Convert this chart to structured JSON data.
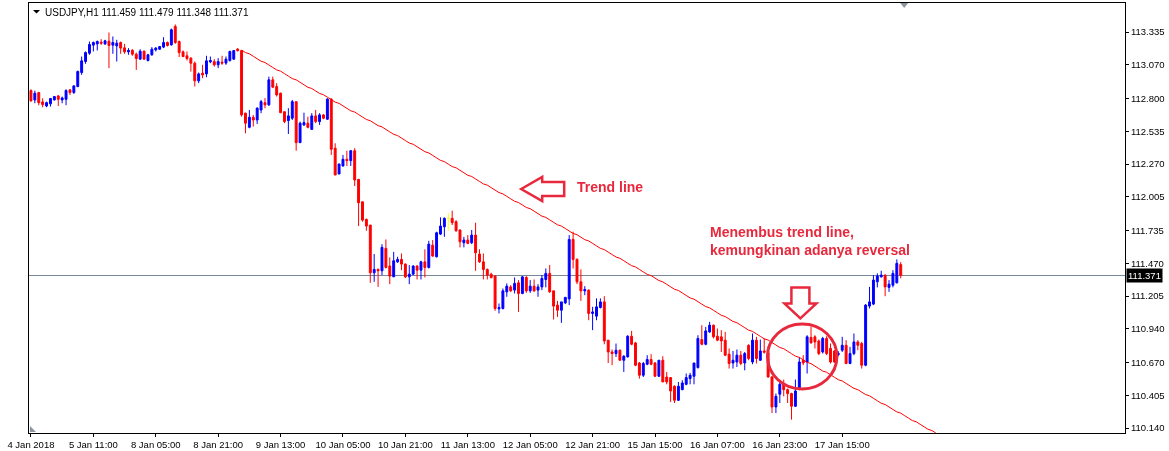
{
  "chart_data": {
    "type": "candlestick",
    "title": "USDJPY,H1 111.459 111.479 111.348 111.371",
    "categories": [
      "4 Jan 2018",
      null,
      null,
      null,
      null,
      null,
      null,
      null,
      null,
      null,
      null,
      null,
      null,
      null,
      null,
      null,
      "5 Jan 11:00",
      null,
      null,
      null,
      null,
      null,
      null,
      null,
      null,
      null,
      null,
      null,
      null,
      null,
      null,
      null,
      "8 Jan 05:00",
      null,
      null,
      null,
      null,
      null,
      null,
      null,
      null,
      null,
      null,
      null,
      null,
      null,
      null,
      null,
      "8 Jan 21:00",
      null,
      null,
      null,
      null,
      null,
      null,
      null,
      null,
      null,
      null,
      null,
      null,
      null,
      null,
      null,
      "9 Jan 13:00",
      null,
      null,
      null,
      null,
      null,
      null,
      null,
      null,
      null,
      null,
      null,
      null,
      null,
      null,
      null,
      "10 Jan 05:00",
      null,
      null,
      null,
      null,
      null,
      null,
      null,
      null,
      null,
      null,
      null,
      null,
      null,
      null,
      null,
      "10 Jan 21:00",
      null,
      null,
      null,
      null,
      null,
      null,
      null,
      null,
      null,
      null,
      null,
      null,
      null,
      null,
      null,
      "11 Jan 13:00",
      null,
      null,
      null,
      null,
      null,
      null,
      null,
      null,
      null,
      null,
      null,
      null,
      null,
      null,
      null,
      "12 Jan 05:00",
      null,
      null,
      null,
      null,
      null,
      null,
      null,
      null,
      null,
      null,
      null,
      null,
      null,
      null,
      null,
      "12 Jan 21:00",
      null,
      null,
      null,
      null,
      null,
      null,
      null,
      null,
      null,
      null,
      null,
      null,
      null,
      null,
      null,
      "15 Jan 15:00",
      null,
      null,
      null,
      null,
      null,
      null,
      null,
      null,
      null,
      null,
      null,
      null,
      null,
      null,
      null,
      "16 Jan 07:00",
      null,
      null,
      null,
      null,
      null,
      null,
      null,
      null,
      null,
      null,
      null,
      null,
      null,
      null,
      null,
      "16 Jan 23:00",
      null,
      null,
      null,
      null,
      null,
      null,
      null,
      null,
      null,
      null,
      null,
      null,
      null,
      null,
      null,
      "17 Jan 15:00",
      null,
      null,
      null,
      null,
      null,
      null,
      null,
      null,
      null,
      null,
      null,
      null,
      null,
      null,
      null,
      null,
      null,
      null,
      null,
      null,
      null,
      null,
      null,
      null,
      null,
      null,
      null,
      null,
      null,
      null,
      null,
      null,
      null,
      null,
      null,
      null,
      null,
      null,
      null,
      null,
      null,
      null,
      null,
      null,
      null,
      null,
      null,
      null,
      null,
      null,
      null,
      null,
      null,
      null,
      null,
      null,
      null,
      null,
      null,
      null,
      null,
      null,
      null,
      null,
      null,
      null,
      null,
      null,
      null,
      null,
      null,
      null
    ],
    "ohlc": [
      [
        112.863,
        112.874,
        112.774,
        112.78
      ],
      [
        112.788,
        112.863,
        112.761,
        112.842
      ],
      [
        112.847,
        112.853,
        112.745,
        112.766
      ],
      [
        112.772,
        112.801,
        112.729,
        112.75
      ],
      [
        112.739,
        112.774,
        112.729,
        112.766
      ],
      [
        112.756,
        112.804,
        112.734,
        112.799
      ],
      [
        112.788,
        112.82,
        112.783,
        112.815
      ],
      [
        112.82,
        112.828,
        112.739,
        112.793
      ],
      [
        112.788,
        112.815,
        112.761,
        112.804
      ],
      [
        112.793,
        112.874,
        112.745,
        112.863
      ],
      [
        112.869,
        112.874,
        112.828,
        112.847
      ],
      [
        112.847,
        112.907,
        112.837,
        112.901
      ],
      [
        112.896,
        113.025,
        112.89,
        113.017
      ],
      [
        113.009,
        113.138,
        112.99,
        113.103
      ],
      [
        113.098,
        113.179,
        113.079,
        113.17
      ],
      [
        113.165,
        113.259,
        113.152,
        113.235
      ],
      [
        113.23,
        113.259,
        113.179,
        113.251
      ],
      [
        113.24,
        113.267,
        113.187,
        113.259
      ],
      [
        113.254,
        113.278,
        113.232,
        113.246
      ],
      [
        113.24,
        113.273,
        113.232,
        113.265
      ],
      [
        113.262,
        113.332,
        113.044,
        113.227
      ],
      [
        113.23,
        113.3,
        113.16,
        113.251
      ],
      [
        113.224,
        113.273,
        113.098,
        113.246
      ],
      [
        113.251,
        113.259,
        113.16,
        113.206
      ],
      [
        113.208,
        113.24,
        113.16,
        113.176
      ],
      [
        113.176,
        113.206,
        113.152,
        113.187
      ],
      [
        113.189,
        113.197,
        113.144,
        113.157
      ],
      [
        113.157,
        113.17,
        113.03,
        113.122
      ],
      [
        113.117,
        113.197,
        113.111,
        113.181
      ],
      [
        113.181,
        113.187,
        113.111,
        113.117
      ],
      [
        113.106,
        113.16,
        113.098,
        113.152
      ],
      [
        113.152,
        113.214,
        113.144,
        113.197
      ],
      [
        113.192,
        113.214,
        113.179,
        113.206
      ],
      [
        113.197,
        113.219,
        113.192,
        113.219
      ],
      [
        113.214,
        113.294,
        113.206,
        113.251
      ],
      [
        113.251,
        113.259,
        113.219,
        113.227
      ],
      [
        113.232,
        113.364,
        113.227,
        113.354
      ],
      [
        113.381,
        113.397,
        113.24,
        113.251
      ],
      [
        113.259,
        113.267,
        113.133,
        113.17
      ],
      [
        113.176,
        113.187,
        113.133,
        113.138
      ],
      [
        113.144,
        113.179,
        113.106,
        113.122
      ],
      [
        113.125,
        113.133,
        113.017,
        113.084
      ],
      [
        113.084,
        113.098,
        112.896,
        112.942
      ],
      [
        112.942,
        113.009,
        112.923,
        112.998
      ],
      [
        113.004,
        113.071,
        112.963,
        112.99
      ],
      [
        112.998,
        113.144,
        112.971,
        113.103
      ],
      [
        113.095,
        113.138,
        113.084,
        113.106
      ],
      [
        113.097,
        113.117,
        113.057,
        113.071
      ],
      [
        113.071,
        113.125,
        113.044,
        113.097
      ],
      [
        113.093,
        113.144,
        113.071,
        113.085
      ],
      [
        113.085,
        113.138,
        113.071,
        113.117
      ],
      [
        113.106,
        113.186,
        113.097,
        113.178
      ],
      [
        113.117,
        113.19,
        113.111,
        113.186
      ],
      [
        113.198,
        113.206,
        113.178,
        113.186
      ],
      [
        113.186,
        113.19,
        112.653,
        112.667
      ],
      [
        112.681,
        112.685,
        112.519,
        112.6
      ],
      [
        112.567,
        112.707,
        112.559,
        112.648
      ],
      [
        112.648,
        112.667,
        112.572,
        112.626
      ],
      [
        112.626,
        112.729,
        112.594,
        112.721
      ],
      [
        112.707,
        112.788,
        112.681,
        112.774
      ],
      [
        112.766,
        112.802,
        112.721,
        112.748
      ],
      [
        112.748,
        112.976,
        112.74,
        112.95
      ],
      [
        112.95,
        112.976,
        112.883,
        112.891
      ],
      [
        112.896,
        112.923,
        112.815,
        112.828
      ],
      [
        112.842,
        112.847,
        112.681,
        112.685
      ],
      [
        112.693,
        112.693,
        112.6,
        112.613
      ],
      [
        112.621,
        112.721,
        112.513,
        112.659
      ],
      [
        112.64,
        112.788,
        112.626,
        112.774
      ],
      [
        112.774,
        112.774,
        112.378,
        112.443
      ],
      [
        112.443,
        112.613,
        112.443,
        112.6
      ],
      [
        112.586,
        112.685,
        112.578,
        112.605
      ],
      [
        112.6,
        112.653,
        112.559,
        112.567
      ],
      [
        112.55,
        112.681,
        112.546,
        112.659
      ],
      [
        112.659,
        112.707,
        112.6,
        112.613
      ],
      [
        112.613,
        112.681,
        112.586,
        112.667
      ],
      [
        112.667,
        112.675,
        112.632,
        112.64
      ],
      [
        112.632,
        112.802,
        112.626,
        112.794
      ],
      [
        112.794,
        112.802,
        112.344,
        112.39
      ],
      [
        112.398,
        112.438,
        112.182,
        112.182
      ],
      [
        112.19,
        112.271,
        112.19,
        112.271
      ],
      [
        112.255,
        112.344,
        112.249,
        112.309
      ],
      [
        112.309,
        112.378,
        112.255,
        112.298
      ],
      [
        112.298,
        112.384,
        112.255,
        112.378
      ],
      [
        112.378,
        112.398,
        112.093,
        112.142
      ],
      [
        112.147,
        112.147,
        111.77,
        111.958
      ],
      [
        111.966,
        111.966,
        111.805,
        111.818
      ],
      [
        111.824,
        111.83,
        111.732,
        111.77
      ],
      [
        111.778,
        111.778,
        111.312,
        111.393
      ],
      [
        111.393,
        111.544,
        111.32,
        111.42
      ],
      [
        111.42,
        111.428,
        111.279,
        111.409
      ],
      [
        111.409,
        111.624,
        111.374,
        111.598
      ],
      [
        111.59,
        111.662,
        111.428,
        111.436
      ],
      [
        111.447,
        111.517,
        111.301,
        111.366
      ],
      [
        111.36,
        111.562,
        111.36,
        111.49
      ],
      [
        111.481,
        111.522,
        111.473,
        111.501
      ],
      [
        111.501,
        111.549,
        111.414,
        111.463
      ],
      [
        111.463,
        111.468,
        111.35,
        111.36
      ],
      [
        111.36,
        111.455,
        111.301,
        111.382
      ],
      [
        111.382,
        111.455,
        111.374,
        111.447
      ],
      [
        111.447,
        111.455,
        111.339,
        111.414
      ],
      [
        111.414,
        111.49,
        111.339,
        111.481
      ],
      [
        111.481,
        111.582,
        111.355,
        111.436
      ],
      [
        111.436,
        111.651,
        111.428,
        111.624
      ],
      [
        111.616,
        111.657,
        111.522,
        111.528
      ],
      [
        111.522,
        111.724,
        111.517,
        111.716
      ],
      [
        111.705,
        111.84,
        111.697,
        111.77
      ],
      [
        111.764,
        111.84,
        111.683,
        111.832
      ],
      [
        111.832,
        111.873,
        111.732,
        111.832
      ],
      [
        111.832,
        111.894,
        111.778,
        111.797
      ],
      [
        111.805,
        111.818,
        111.724,
        111.732
      ],
      [
        111.738,
        111.743,
        111.598,
        111.643
      ],
      [
        111.635,
        111.683,
        111.598,
        111.657
      ],
      [
        111.657,
        111.697,
        111.624,
        111.63
      ],
      [
        111.635,
        111.738,
        111.624,
        111.697
      ],
      [
        111.697,
        111.797,
        111.409,
        111.554
      ],
      [
        111.544,
        111.582,
        111.473,
        111.481
      ],
      [
        111.481,
        111.549,
        111.339,
        111.42
      ],
      [
        111.42,
        111.428,
        111.339,
        111.374
      ],
      [
        111.382,
        111.393,
        111.347,
        111.355
      ],
      [
        111.366,
        111.374,
        111.086,
        111.105
      ],
      [
        111.102,
        111.145,
        111.065,
        111.113
      ],
      [
        111.105,
        111.266,
        111.097,
        111.247
      ],
      [
        111.239,
        111.307,
        111.199,
        111.285
      ],
      [
        111.279,
        111.293,
        111.239,
        111.247
      ],
      [
        111.253,
        111.355,
        111.226,
        111.307
      ],
      [
        111.312,
        111.334,
        111.077,
        111.226
      ],
      [
        111.226,
        111.366,
        111.22,
        111.36
      ],
      [
        111.355,
        111.366,
        111.231,
        111.247
      ],
      [
        111.247,
        111.334,
        111.231,
        111.285
      ],
      [
        111.285,
        111.339,
        111.239,
        111.247
      ],
      [
        111.253,
        111.301,
        111.199,
        111.279
      ],
      [
        111.279,
        111.374,
        111.253,
        111.347
      ],
      [
        111.339,
        111.428,
        111.275,
        111.388
      ],
      [
        111.388,
        111.455,
        111.231,
        111.239
      ],
      [
        111.247,
        111.247,
        111.016,
        111.124
      ],
      [
        111.132,
        111.166,
        111.037,
        111.091
      ],
      [
        111.091,
        111.158,
        110.989,
        111.158
      ],
      [
        111.15,
        111.199,
        111.14,
        111.194
      ],
      [
        111.182,
        111.697,
        111.132,
        111.662
      ],
      [
        111.662,
        111.724,
        111.428,
        111.501
      ],
      [
        111.501,
        111.509,
        111.301,
        111.32
      ],
      [
        111.32,
        111.42,
        111.166,
        111.247
      ],
      [
        111.247,
        111.285,
        111.212,
        111.258
      ],
      [
        111.253,
        111.258,
        111.01,
        111.065
      ],
      [
        111.065,
        111.118,
        110.93,
        111.077
      ],
      [
        111.043,
        111.186,
        111.01,
        111.118
      ],
      [
        111.113,
        111.186,
        111.105,
        111.158
      ],
      [
        111.158,
        111.204,
        110.816,
        110.843
      ],
      [
        110.849,
        110.849,
        110.665,
        110.754
      ],
      [
        110.754,
        110.774,
        110.647,
        110.741
      ],
      [
        110.741,
        110.822,
        110.714,
        110.768
      ],
      [
        110.768,
        110.774,
        110.687,
        110.687
      ],
      [
        110.687,
        110.728,
        110.593,
        110.72
      ],
      [
        110.714,
        110.889,
        110.709,
        110.881
      ],
      [
        110.881,
        110.924,
        110.808,
        110.816
      ],
      [
        110.827,
        110.835,
        110.639,
        110.647
      ],
      [
        110.665,
        110.673,
        110.539,
        110.566
      ],
      [
        110.566,
        110.673,
        110.552,
        110.661
      ],
      [
        110.655,
        110.728,
        110.647,
        110.693
      ],
      [
        110.693,
        110.736,
        110.647,
        110.655
      ],
      [
        110.665,
        110.673,
        110.552,
        110.558
      ],
      [
        110.558,
        110.687,
        110.552,
        110.687
      ],
      [
        110.687,
        110.72,
        110.512,
        110.512
      ],
      [
        110.552,
        110.593,
        110.493,
        110.512
      ],
      [
        110.547,
        110.552,
        110.35,
        110.439
      ],
      [
        110.477,
        110.485,
        110.342,
        110.364
      ],
      [
        110.364,
        110.512,
        110.358,
        110.477
      ],
      [
        110.45,
        110.526,
        110.445,
        110.504
      ],
      [
        110.493,
        110.58,
        110.485,
        110.547
      ],
      [
        110.539,
        110.585,
        110.493,
        110.566
      ],
      [
        110.558,
        110.665,
        110.493,
        110.665
      ],
      [
        110.628,
        110.889,
        110.62,
        110.863
      ],
      [
        110.854,
        110.97,
        110.808,
        110.816
      ],
      [
        110.816,
        110.956,
        110.808,
        110.924
      ],
      [
        110.916,
        110.997,
        110.908,
        110.97
      ],
      [
        110.97,
        110.975,
        110.863,
        110.876
      ],
      [
        110.881,
        110.943,
        110.841,
        110.849
      ],
      [
        110.876,
        110.93,
        110.754,
        110.843
      ],
      [
        110.849,
        110.916,
        110.72,
        110.728
      ],
      [
        110.736,
        110.782,
        110.62,
        110.661
      ],
      [
        110.665,
        110.762,
        110.62,
        110.687
      ],
      [
        110.673,
        110.774,
        110.633,
        110.728
      ],
      [
        110.728,
        110.762,
        110.647,
        110.661
      ],
      [
        110.665,
        110.754,
        110.606,
        110.741
      ],
      [
        110.808,
        110.816,
        110.687,
        110.701
      ],
      [
        110.673,
        110.903,
        110.655,
        110.849
      ],
      [
        110.849,
        110.876,
        110.661,
        110.701
      ],
      [
        110.687,
        110.854,
        110.681,
        110.762
      ],
      [
        110.762,
        110.863,
        110.741,
        110.752
      ],
      [
        110.746,
        110.8,
        110.547,
        110.552
      ],
      [
        110.552,
        110.56,
        110.261,
        110.31
      ],
      [
        110.31,
        110.418,
        110.261,
        110.396
      ],
      [
        110.413,
        110.52,
        110.342,
        110.493
      ],
      [
        110.493,
        110.531,
        110.396,
        110.45
      ],
      [
        110.45,
        110.459,
        110.342,
        110.418
      ],
      [
        110.418,
        110.425,
        110.208,
        110.316
      ],
      [
        110.316,
        110.531,
        110.31,
        110.439
      ],
      [
        110.459,
        110.714,
        110.445,
        110.673
      ],
      [
        110.687,
        110.728,
        110.647,
        110.665
      ],
      [
        110.673,
        110.889,
        110.58,
        110.876
      ],
      [
        110.871,
        110.956,
        110.822,
        110.827
      ],
      [
        110.876,
        110.889,
        110.782,
        110.835
      ],
      [
        110.843,
        110.854,
        110.728,
        110.741
      ],
      [
        110.754,
        110.876,
        110.741,
        110.863
      ],
      [
        110.863,
        110.881,
        110.728,
        110.741
      ],
      [
        110.782,
        110.822,
        110.661,
        110.673
      ],
      [
        110.762,
        110.768,
        110.665,
        110.673
      ],
      [
        110.733,
        110.76,
        110.72,
        110.741
      ],
      [
        110.768,
        110.876,
        110.754,
        110.808
      ],
      [
        110.808,
        110.849,
        110.655,
        110.661
      ],
      [
        110.661,
        110.795,
        110.655,
        110.741
      ],
      [
        110.741,
        110.903,
        110.728,
        110.835
      ],
      [
        110.835,
        110.849,
        110.768,
        110.808
      ],
      [
        110.822,
        110.835,
        110.62,
        110.647
      ],
      [
        110.647,
        111.14,
        110.639,
        111.132
      ],
      [
        111.124,
        111.279,
        111.105,
        111.158
      ],
      [
        111.14,
        111.374,
        111.132,
        111.334
      ],
      [
        111.32,
        111.388,
        111.275,
        111.366
      ],
      [
        111.36,
        111.409,
        111.355,
        111.374
      ],
      [
        111.374,
        111.38,
        111.204,
        111.279
      ],
      [
        111.275,
        111.334,
        111.239,
        111.301
      ],
      [
        111.293,
        111.414,
        111.275,
        111.388
      ],
      [
        111.312,
        111.501,
        111.307,
        111.469
      ],
      [
        111.459,
        111.479,
        111.348,
        111.371
      ],
      null,
      null,
      null,
      null,
      null,
      null,
      null,
      null,
      null,
      null,
      null,
      null,
      null,
      null,
      null,
      null,
      null,
      null,
      null,
      null,
      null,
      null,
      null,
      null,
      null,
      null,
      null,
      null,
      null,
      null,
      null,
      null,
      null,
      null,
      null,
      null,
      null,
      null,
      null,
      null,
      null,
      null,
      null,
      null,
      null,
      null,
      null,
      null,
      null,
      null,
      null,
      null,
      null,
      null,
      null,
      null,
      null
    ],
    "colors": [
      "#ff0000",
      "#0000ff",
      "#ff0000",
      "#ff0000",
      "#0000ff",
      "#0000ff",
      "#0000ff",
      "#ff0000",
      "#0000ff",
      "#0000ff",
      "#ff0000",
      "#0000ff",
      "#0000ff",
      "#0000ff",
      "#0000ff",
      "#0000ff",
      "#0000ff",
      "#0000ff",
      "#ff0000",
      "#0000ff",
      "#ff0000",
      "#0000ff",
      "#0000ff",
      "#ff0000",
      "#ff0000",
      "#0000ff",
      "#ff0000",
      "#ff0000",
      "#0000ff",
      "#ff0000",
      "#0000ff",
      "#0000ff",
      "#0000ff",
      "#0000ff",
      "#0000ff",
      "#ff0000",
      "#0000ff",
      "#ff0000",
      "#ff0000",
      "#ff0000",
      "#ff0000",
      "#ff0000",
      "#ff0000",
      "#0000ff",
      "#ff0000",
      "#0000ff",
      "#0000ff",
      "#ff0000",
      "#0000ff",
      "#ff0000",
      "#0000ff",
      "#0000ff",
      "#0000ff",
      "#ff0000",
      "#ff0000",
      "#ff0000",
      "#0000ff",
      "#ff0000",
      "#0000ff",
      "#0000ff",
      "#ff0000",
      "#0000ff",
      "#ff0000",
      "#ff0000",
      "#ff0000",
      "#ff0000",
      "#0000ff",
      "#0000ff",
      "#ff0000",
      "#0000ff",
      "#0000ff",
      "#ff0000",
      "#0000ff",
      "#ff0000",
      "#0000ff",
      "#ff0000",
      "#0000ff",
      "#ff0000",
      "#ff0000",
      "#0000ff",
      "#0000ff",
      "#ff0000",
      "#0000ff",
      "#ff0000",
      "#ff0000",
      "#ff0000",
      "#ff0000",
      "#ff0000",
      "#0000ff",
      "#ff0000",
      "#0000ff",
      "#ff0000",
      "#ff0000",
      "#0000ff",
      "#0000ff",
      "#ff0000",
      "#ff0000",
      "#0000ff",
      "#0000ff",
      "#ff0000",
      "#0000ff",
      "#ff0000",
      "#0000ff",
      "#ff0000",
      "#0000ff",
      "#0000ff",
      "#0000ff",
      "#ffff00",
      "#ff0000",
      "#ff0000",
      "#ff0000",
      "#0000ff",
      "#ff0000",
      "#0000ff",
      "#ff0000",
      "#ff0000",
      "#ff0000",
      "#ff0000",
      "#ff0000",
      "#ff0000",
      "#0000ff",
      "#0000ff",
      "#0000ff",
      "#ff0000",
      "#0000ff",
      "#ff0000",
      "#0000ff",
      "#ff0000",
      "#0000ff",
      "#ff0000",
      "#0000ff",
      "#0000ff",
      "#0000ff",
      "#ff0000",
      "#ff0000",
      "#ff0000",
      "#0000ff",
      "#0000ff",
      "#0000ff",
      "#ff0000",
      "#ff0000",
      "#ff0000",
      "#0000ff",
      "#ff0000",
      "#0000ff",
      "#0000ff",
      "#0000ff",
      "#ff0000",
      "#ff0000",
      "#ff0000",
      "#0000ff",
      "#ff0000",
      "#0000ff",
      "#0000ff",
      "#ff0000",
      "#ff0000",
      "#ff0000",
      "#0000ff",
      "#0000ff",
      "#ff0000",
      "#ff0000",
      "#0000ff",
      "#ff0000",
      "#ff0000",
      "#ff0000",
      "#ff0000",
      "#0000ff",
      "#0000ff",
      "#0000ff",
      "#0000ff",
      "#0000ff",
      "#0000ff",
      "#ff0000",
      "#0000ff",
      "#0000ff",
      "#ff0000",
      "#ff0000",
      "#ff0000",
      "#ff0000",
      "#ff0000",
      "#0000ff",
      "#0000ff",
      "#ff0000",
      "#0000ff",
      "#ff0000",
      "#0000ff",
      "#ff0000",
      "#0000ff",
      "#ff0000",
      "#ff0000",
      "#ff0000",
      "#0000ff",
      "#0000ff",
      "#ff0000",
      "#ff0000",
      "#ff0000",
      "#0000ff",
      "#0000ff",
      "#ff0000",
      "#0000ff",
      "#ff0000",
      "#ff0000",
      "#ff0000",
      "#0000ff",
      "#ff0000",
      "#ff0000",
      "#ff0000",
      "#0000ff",
      "#0000ff",
      "#ff0000",
      "#0000ff",
      "#0000ff",
      "#ff0000",
      "#ff0000",
      "#0000ff",
      "#0000ff",
      "#0000ff",
      "#0000ff",
      "#0000ff",
      "#ff0000",
      "#0000ff",
      "#0000ff",
      "#0000ff",
      "#ff0000",
      null,
      null,
      null,
      null,
      null,
      null,
      null,
      null,
      null,
      null,
      null,
      null,
      null,
      null,
      null,
      null,
      null,
      null,
      null,
      null,
      null,
      null,
      null,
      null,
      null,
      null,
      null,
      null,
      null,
      null,
      null,
      null,
      null,
      null,
      null,
      null,
      null,
      null,
      null,
      null,
      null,
      null,
      null,
      null,
      null,
      null,
      null,
      null,
      null,
      null,
      null,
      null,
      null,
      null,
      null,
      null,
      null
    ],
    "ylim": [
      110.1,
      113.57
    ],
    "yticks": [
      113.335,
      {
        "value": 113.07,
        "label": "113.070"
      },
      {
        "value": 112.8,
        "label": "112.800"
      },
      112.535,
      {
        "value": 112.27,
        "label": "112.270"
      },
      112.005,
      111.735,
      {
        "value": 111.47,
        "label": "111.470"
      },
      111.205,
      {
        "value": 110.94,
        "label": "110.940"
      },
      {
        "value": 110.67,
        "label": "110.670"
      },
      110.405,
      {
        "value": 110.14,
        "label": "110.140"
      }
    ],
    "series": [
      {
        "type": "line",
        "color": "#ff0000",
        "values": [
          null,
          null,
          null,
          null,
          null,
          null,
          null,
          null,
          null,
          null,
          null,
          null,
          null,
          null,
          null,
          null,
          null,
          null,
          null,
          null,
          null,
          null,
          null,
          null,
          null,
          null,
          null,
          null,
          null,
          null,
          null,
          null,
          null,
          null,
          null,
          null,
          null,
          null,
          null,
          null,
          null,
          null,
          null,
          null,
          null,
          null,
          null,
          null,
          null,
          null,
          null,
          null,
          null,
          null,
          113.19,
          113.17,
          113.16,
          113.14,
          113.12,
          113.1,
          113.09,
          113.07,
          113.05,
          113.03,
          113.02,
          113,
          112.98,
          112.96,
          112.95,
          112.93,
          112.91,
          112.89,
          112.88,
          112.86,
          112.84,
          112.83,
          112.81,
          112.79,
          112.77,
          112.76,
          112.74,
          112.72,
          112.7,
          112.69,
          112.67,
          112.65,
          112.63,
          112.62,
          112.6,
          112.58,
          112.57,
          112.55,
          112.53,
          112.51,
          112.5,
          112.48,
          112.46,
          112.44,
          112.43,
          112.41,
          112.39,
          112.37,
          112.36,
          112.34,
          112.32,
          112.3,
          112.29,
          112.27,
          112.25,
          112.24,
          112.22,
          112.2,
          112.18,
          112.17,
          112.15,
          112.13,
          112.11,
          112.1,
          112.08,
          112.06,
          112.04,
          112.03,
          112.01,
          111.99,
          111.97,
          111.96,
          111.94,
          111.92,
          111.91,
          111.89,
          111.87,
          111.85,
          111.84,
          111.82,
          111.8,
          111.78,
          111.77,
          111.75,
          111.73,
          111.71,
          111.7,
          111.68,
          111.66,
          111.65,
          111.63,
          111.61,
          111.59,
          111.58,
          111.56,
          111.54,
          111.52,
          111.51,
          111.49,
          111.47,
          111.45,
          111.44,
          111.42,
          111.4,
          111.38,
          111.37,
          111.35,
          111.33,
          111.32,
          111.3,
          111.28,
          111.26,
          111.25,
          111.23,
          111.21,
          111.19,
          111.18,
          111.16,
          111.14,
          111.12,
          111.11,
          111.09,
          111.07,
          111.05,
          111.04,
          111.02,
          111,
          110.99,
          110.97,
          110.95,
          110.93,
          110.92,
          110.9,
          110.88,
          110.86,
          110.85,
          110.83,
          110.81,
          110.79,
          110.78,
          110.76,
          110.74,
          110.72,
          110.71,
          110.69,
          110.67,
          110.66,
          110.64,
          110.62,
          110.6,
          110.59,
          110.57,
          110.55,
          110.53,
          110.52,
          110.5,
          110.48,
          110.46,
          110.45,
          110.43,
          110.41,
          110.4,
          110.38,
          110.36,
          110.34,
          110.33,
          110.31,
          110.29,
          110.27,
          110.26,
          110.24,
          110.22,
          110.2,
          110.19,
          110.17,
          110.15,
          110.13,
          110.12,
          110.1,
          null,
          null,
          null,
          null,
          null,
          null,
          null,
          null,
          null,
          null,
          null,
          null,
          null,
          null,
          null,
          null,
          null,
          null,
          null,
          null,
          null,
          null,
          null,
          null,
          null,
          null,
          null,
          null,
          null,
          null,
          null,
          null,
          null,
          null,
          null,
          null,
          null,
          null,
          null,
          null,
          null,
          null,
          null,
          null,
          null,
          null,
          null,
          null
        ]
      }
    ],
    "ref_lines": [
      {
        "axis": "y",
        "value": 111.371,
        "label": "111.371",
        "color": "#778899"
      }
    ],
    "annotations": [
      "Trend line",
      "Menembus trend line,\nkemungkinan adanya reversal"
    ]
  }
}
